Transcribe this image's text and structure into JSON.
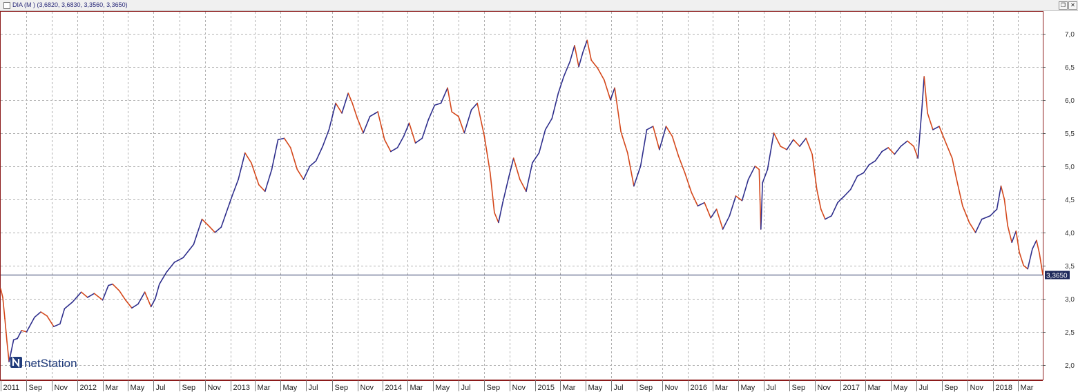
{
  "window": {
    "title": "DIA (M ) (3,6820, 3,6830, 3,3560, 3,3650)",
    "restore_glyph": "❐",
    "close_glyph": "✕"
  },
  "brand": {
    "name": "netStation",
    "icon": "n-logo-icon"
  },
  "colors": {
    "up": "#2e2e8c",
    "down": "#d4471a",
    "grid": "#b0b0b0",
    "frame": "#8b1a1a",
    "price_line": "#1f2a5c",
    "price_label_bg": "#1f2a5c"
  },
  "chart_data": {
    "type": "line",
    "title": "",
    "xlabel": "",
    "ylabel": "",
    "ylim": [
      1.78,
      7.33
    ],
    "y_ticks": [
      "2,0",
      "2,5",
      "3,0",
      "3,5",
      "4,0",
      "4,5",
      "5,0",
      "5,5",
      "6,0",
      "6,5",
      "7,0"
    ],
    "x_ticks": [
      "2011",
      "Sep",
      "Nov",
      "2012",
      "Mar",
      "May",
      "Jul",
      "Sep",
      "Nov",
      "2013",
      "Mar",
      "May",
      "Jul",
      "Sep",
      "Nov",
      "2014",
      "Mar",
      "May",
      "Jul",
      "Sep",
      "Nov",
      "2015",
      "Mar",
      "May",
      "Jul",
      "Sep",
      "Nov",
      "2016",
      "Mar",
      "May",
      "Jul",
      "Sep",
      "Nov",
      "2017",
      "Mar",
      "May",
      "Jul",
      "Sep",
      "Nov",
      "2018",
      "Mar"
    ],
    "x_tick_dates": [
      "2011-07-01",
      "2011-09-01",
      "2011-11-01",
      "2012-01-01",
      "2012-03-01",
      "2012-05-01",
      "2012-07-01",
      "2012-09-01",
      "2012-11-01",
      "2013-01-01",
      "2013-03-01",
      "2013-05-01",
      "2013-07-01",
      "2013-09-01",
      "2013-11-01",
      "2014-01-01",
      "2014-03-01",
      "2014-05-01",
      "2014-07-01",
      "2014-09-01",
      "2014-11-01",
      "2015-01-01",
      "2015-03-01",
      "2015-05-01",
      "2015-07-01",
      "2015-09-01",
      "2015-11-01",
      "2016-01-01",
      "2016-03-01",
      "2016-05-01",
      "2016-07-01",
      "2016-09-01",
      "2016-11-01",
      "2017-01-01",
      "2017-03-01",
      "2017-05-01",
      "2017-07-01",
      "2017-09-01",
      "2017-11-01",
      "2018-01-01",
      "2018-03-01"
    ],
    "x_range": [
      "2011-07-01",
      "2018-04-30"
    ],
    "grid": true,
    "last_value": 3.365,
    "last_value_label": "3,3650",
    "series": [
      {
        "values": [
          [
            "2011-07-01",
            3.15
          ],
          [
            "2011-07-06",
            3.02
          ],
          [
            "2011-07-11",
            2.7
          ],
          [
            "2011-07-16",
            2.35
          ],
          [
            "2011-07-21",
            2.05
          ],
          [
            "2011-07-26",
            2.2
          ],
          [
            "2011-08-01",
            2.38
          ],
          [
            "2011-08-10",
            2.4
          ],
          [
            "2011-08-20",
            2.52
          ],
          [
            "2011-09-01",
            2.5
          ],
          [
            "2011-09-20",
            2.72
          ],
          [
            "2011-10-05",
            2.8
          ],
          [
            "2011-10-20",
            2.74
          ],
          [
            "2011-11-05",
            2.58
          ],
          [
            "2011-11-20",
            2.62
          ],
          [
            "2011-12-01",
            2.85
          ],
          [
            "2011-12-20",
            2.95
          ],
          [
            "2012-01-10",
            3.1
          ],
          [
            "2012-01-25",
            3.02
          ],
          [
            "2012-02-10",
            3.08
          ],
          [
            "2012-03-01",
            2.98
          ],
          [
            "2012-03-15",
            3.2
          ],
          [
            "2012-03-25",
            3.22
          ],
          [
            "2012-04-10",
            3.12
          ],
          [
            "2012-04-25",
            2.98
          ],
          [
            "2012-05-10",
            2.86
          ],
          [
            "2012-05-25",
            2.92
          ],
          [
            "2012-06-10",
            3.1
          ],
          [
            "2012-06-25",
            2.88
          ],
          [
            "2012-07-05",
            3.0
          ],
          [
            "2012-07-15",
            3.22
          ],
          [
            "2012-08-01",
            3.4
          ],
          [
            "2012-08-20",
            3.55
          ],
          [
            "2012-09-10",
            3.62
          ],
          [
            "2012-10-05",
            3.82
          ],
          [
            "2012-10-25",
            4.2
          ],
          [
            "2012-11-10",
            4.1
          ],
          [
            "2012-11-25",
            4.0
          ],
          [
            "2012-12-10",
            4.08
          ],
          [
            "2013-01-05",
            4.55
          ],
          [
            "2013-01-20",
            4.8
          ],
          [
            "2013-02-05",
            5.2
          ],
          [
            "2013-02-20",
            5.05
          ],
          [
            "2013-03-10",
            4.72
          ],
          [
            "2013-03-25",
            4.62
          ],
          [
            "2013-04-10",
            4.95
          ],
          [
            "2013-04-25",
            5.4
          ],
          [
            "2013-05-10",
            5.42
          ],
          [
            "2013-05-25",
            5.28
          ],
          [
            "2013-06-10",
            4.95
          ],
          [
            "2013-06-25",
            4.8
          ],
          [
            "2013-07-10",
            5.0
          ],
          [
            "2013-07-25",
            5.08
          ],
          [
            "2013-08-10",
            5.3
          ],
          [
            "2013-08-25",
            5.55
          ],
          [
            "2013-09-10",
            5.95
          ],
          [
            "2013-09-25",
            5.8
          ],
          [
            "2013-10-10",
            6.1
          ],
          [
            "2013-10-20",
            5.95
          ],
          [
            "2013-11-01",
            5.72
          ],
          [
            "2013-11-15",
            5.5
          ],
          [
            "2013-12-01",
            5.75
          ],
          [
            "2013-12-20",
            5.82
          ],
          [
            "2014-01-05",
            5.4
          ],
          [
            "2014-01-20",
            5.22
          ],
          [
            "2014-02-05",
            5.28
          ],
          [
            "2014-02-20",
            5.45
          ],
          [
            "2014-03-05",
            5.65
          ],
          [
            "2014-03-20",
            5.35
          ],
          [
            "2014-04-05",
            5.42
          ],
          [
            "2014-04-20",
            5.7
          ],
          [
            "2014-05-05",
            5.92
          ],
          [
            "2014-05-20",
            5.95
          ],
          [
            "2014-06-05",
            6.18
          ],
          [
            "2014-06-15",
            5.82
          ],
          [
            "2014-07-01",
            5.75
          ],
          [
            "2014-07-15",
            5.5
          ],
          [
            "2014-08-01",
            5.85
          ],
          [
            "2014-08-15",
            5.95
          ],
          [
            "2014-09-01",
            5.45
          ],
          [
            "2014-09-15",
            4.9
          ],
          [
            "2014-09-25",
            4.3
          ],
          [
            "2014-10-05",
            4.15
          ],
          [
            "2014-10-15",
            4.45
          ],
          [
            "2014-10-30",
            4.85
          ],
          [
            "2014-11-10",
            5.12
          ],
          [
            "2014-11-25",
            4.8
          ],
          [
            "2014-12-10",
            4.62
          ],
          [
            "2014-12-25",
            5.05
          ],
          [
            "2015-01-10",
            5.2
          ],
          [
            "2015-01-25",
            5.55
          ],
          [
            "2015-02-10",
            5.72
          ],
          [
            "2015-02-25",
            6.1
          ],
          [
            "2015-03-10",
            6.35
          ],
          [
            "2015-03-25",
            6.58
          ],
          [
            "2015-04-05",
            6.82
          ],
          [
            "2015-04-15",
            6.5
          ],
          [
            "2015-04-25",
            6.72
          ],
          [
            "2015-05-05",
            6.9
          ],
          [
            "2015-05-15",
            6.6
          ],
          [
            "2015-05-30",
            6.48
          ],
          [
            "2015-06-15",
            6.3
          ],
          [
            "2015-06-30",
            6.0
          ],
          [
            "2015-07-10",
            6.18
          ],
          [
            "2015-07-25",
            5.52
          ],
          [
            "2015-08-10",
            5.2
          ],
          [
            "2015-08-25",
            4.7
          ],
          [
            "2015-09-10",
            5.0
          ],
          [
            "2015-09-25",
            5.55
          ],
          [
            "2015-10-10",
            5.6
          ],
          [
            "2015-10-25",
            5.25
          ],
          [
            "2015-11-10",
            5.6
          ],
          [
            "2015-11-25",
            5.45
          ],
          [
            "2015-12-10",
            5.15
          ],
          [
            "2015-12-25",
            4.9
          ],
          [
            "2016-01-10",
            4.6
          ],
          [
            "2016-01-25",
            4.4
          ],
          [
            "2016-02-10",
            4.45
          ],
          [
            "2016-02-25",
            4.22
          ],
          [
            "2016-03-10",
            4.35
          ],
          [
            "2016-03-25",
            4.05
          ],
          [
            "2016-04-10",
            4.25
          ],
          [
            "2016-04-25",
            4.55
          ],
          [
            "2016-05-10",
            4.48
          ],
          [
            "2016-05-25",
            4.8
          ],
          [
            "2016-06-10",
            5.0
          ],
          [
            "2016-06-20",
            4.95
          ],
          [
            "2016-06-24",
            4.05
          ],
          [
            "2016-06-28",
            4.75
          ],
          [
            "2016-07-10",
            4.95
          ],
          [
            "2016-07-25",
            5.5
          ],
          [
            "2016-08-10",
            5.3
          ],
          [
            "2016-08-25",
            5.25
          ],
          [
            "2016-09-10",
            5.4
          ],
          [
            "2016-09-25",
            5.3
          ],
          [
            "2016-10-10",
            5.42
          ],
          [
            "2016-10-25",
            5.18
          ],
          [
            "2016-11-05",
            4.65
          ],
          [
            "2016-11-15",
            4.35
          ],
          [
            "2016-11-25",
            4.2
          ],
          [
            "2016-12-10",
            4.25
          ],
          [
            "2016-12-25",
            4.45
          ],
          [
            "2017-01-10",
            4.55
          ],
          [
            "2017-01-25",
            4.65
          ],
          [
            "2017-02-10",
            4.85
          ],
          [
            "2017-02-25",
            4.9
          ],
          [
            "2017-03-10",
            5.02
          ],
          [
            "2017-03-25",
            5.08
          ],
          [
            "2017-04-10",
            5.22
          ],
          [
            "2017-04-25",
            5.28
          ],
          [
            "2017-05-10",
            5.18
          ],
          [
            "2017-05-25",
            5.3
          ],
          [
            "2017-06-10",
            5.38
          ],
          [
            "2017-06-25",
            5.3
          ],
          [
            "2017-07-05",
            5.12
          ],
          [
            "2017-07-15",
            5.9
          ],
          [
            "2017-07-20",
            6.35
          ],
          [
            "2017-07-28",
            5.8
          ],
          [
            "2017-08-10",
            5.55
          ],
          [
            "2017-08-25",
            5.6
          ],
          [
            "2017-09-10",
            5.35
          ],
          [
            "2017-09-25",
            5.12
          ],
          [
            "2017-10-05",
            4.82
          ],
          [
            "2017-10-20",
            4.4
          ],
          [
            "2017-11-05",
            4.15
          ],
          [
            "2017-11-20",
            4.0
          ],
          [
            "2017-12-05",
            4.2
          ],
          [
            "2017-12-25",
            4.25
          ],
          [
            "2018-01-10",
            4.35
          ],
          [
            "2018-01-20",
            4.7
          ],
          [
            "2018-01-28",
            4.5
          ],
          [
            "2018-02-05",
            4.1
          ],
          [
            "2018-02-15",
            3.85
          ],
          [
            "2018-02-25",
            4.02
          ],
          [
            "2018-03-05",
            3.7
          ],
          [
            "2018-03-15",
            3.5
          ],
          [
            "2018-03-25",
            3.45
          ],
          [
            "2018-04-05",
            3.75
          ],
          [
            "2018-04-15",
            3.88
          ],
          [
            "2018-04-22",
            3.68
          ],
          [
            "2018-04-30",
            3.365
          ]
        ]
      }
    ]
  }
}
